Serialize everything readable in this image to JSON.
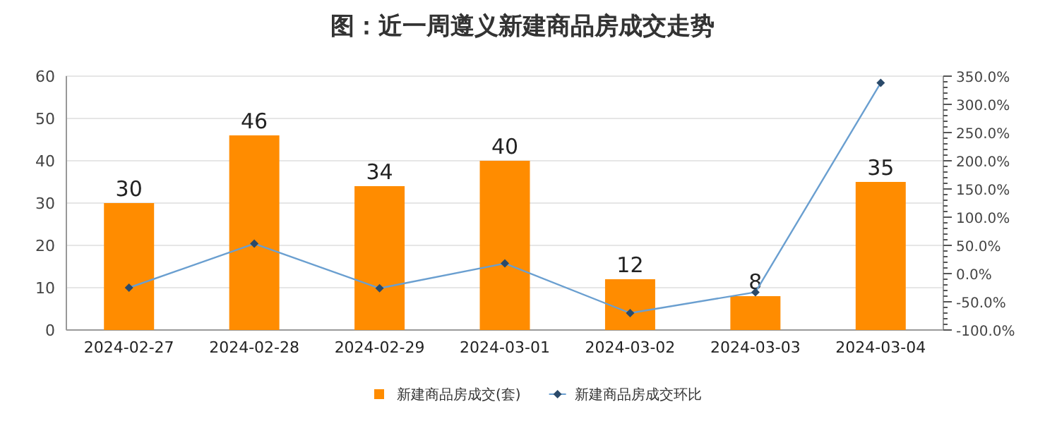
{
  "chart_data": {
    "type": "bar",
    "title": "图：近一周遵义新建商品房成交走势",
    "categories": [
      "2024-02-27",
      "2024-02-28",
      "2024-02-29",
      "2024-03-01",
      "2024-03-02",
      "2024-03-03",
      "2024-03-04"
    ],
    "series": [
      {
        "name": "新建商品房成交(套)",
        "color": "#ff8c00",
        "values": [
          30,
          46,
          34,
          40,
          12,
          8,
          35
        ],
        "value_labels": [
          "30",
          "46",
          "34",
          "40",
          "12",
          "8",
          "35"
        ]
      },
      {
        "name": "新建商品房成交环比",
        "type": "line",
        "axis": "y2",
        "color": "#6a9fd0",
        "marker": "diamond",
        "values": [
          -25,
          53,
          -26,
          18,
          -70,
          -33,
          338
        ]
      }
    ],
    "ylim": [
      0,
      60
    ],
    "yticks": [
      0,
      10,
      20,
      30,
      40,
      50,
      60
    ],
    "y2lim": [
      -100,
      350
    ],
    "y2ticks": [
      {
        "value": -100,
        "label": "-100.0%"
      },
      {
        "value": -50,
        "label": "-50.0%"
      },
      {
        "value": 0,
        "label": "0.0%"
      },
      {
        "value": 50,
        "label": "50.0%"
      },
      {
        "value": 100,
        "label": "100.0%"
      },
      {
        "value": 150,
        "label": "150.0%"
      },
      {
        "value": 200,
        "label": "200.0%"
      },
      {
        "value": 250,
        "label": "250.0%"
      },
      {
        "value": 300,
        "label": "300.0%"
      },
      {
        "value": 350,
        "label": "350.0%"
      }
    ],
    "grid": "y",
    "legend": "bottom"
  }
}
